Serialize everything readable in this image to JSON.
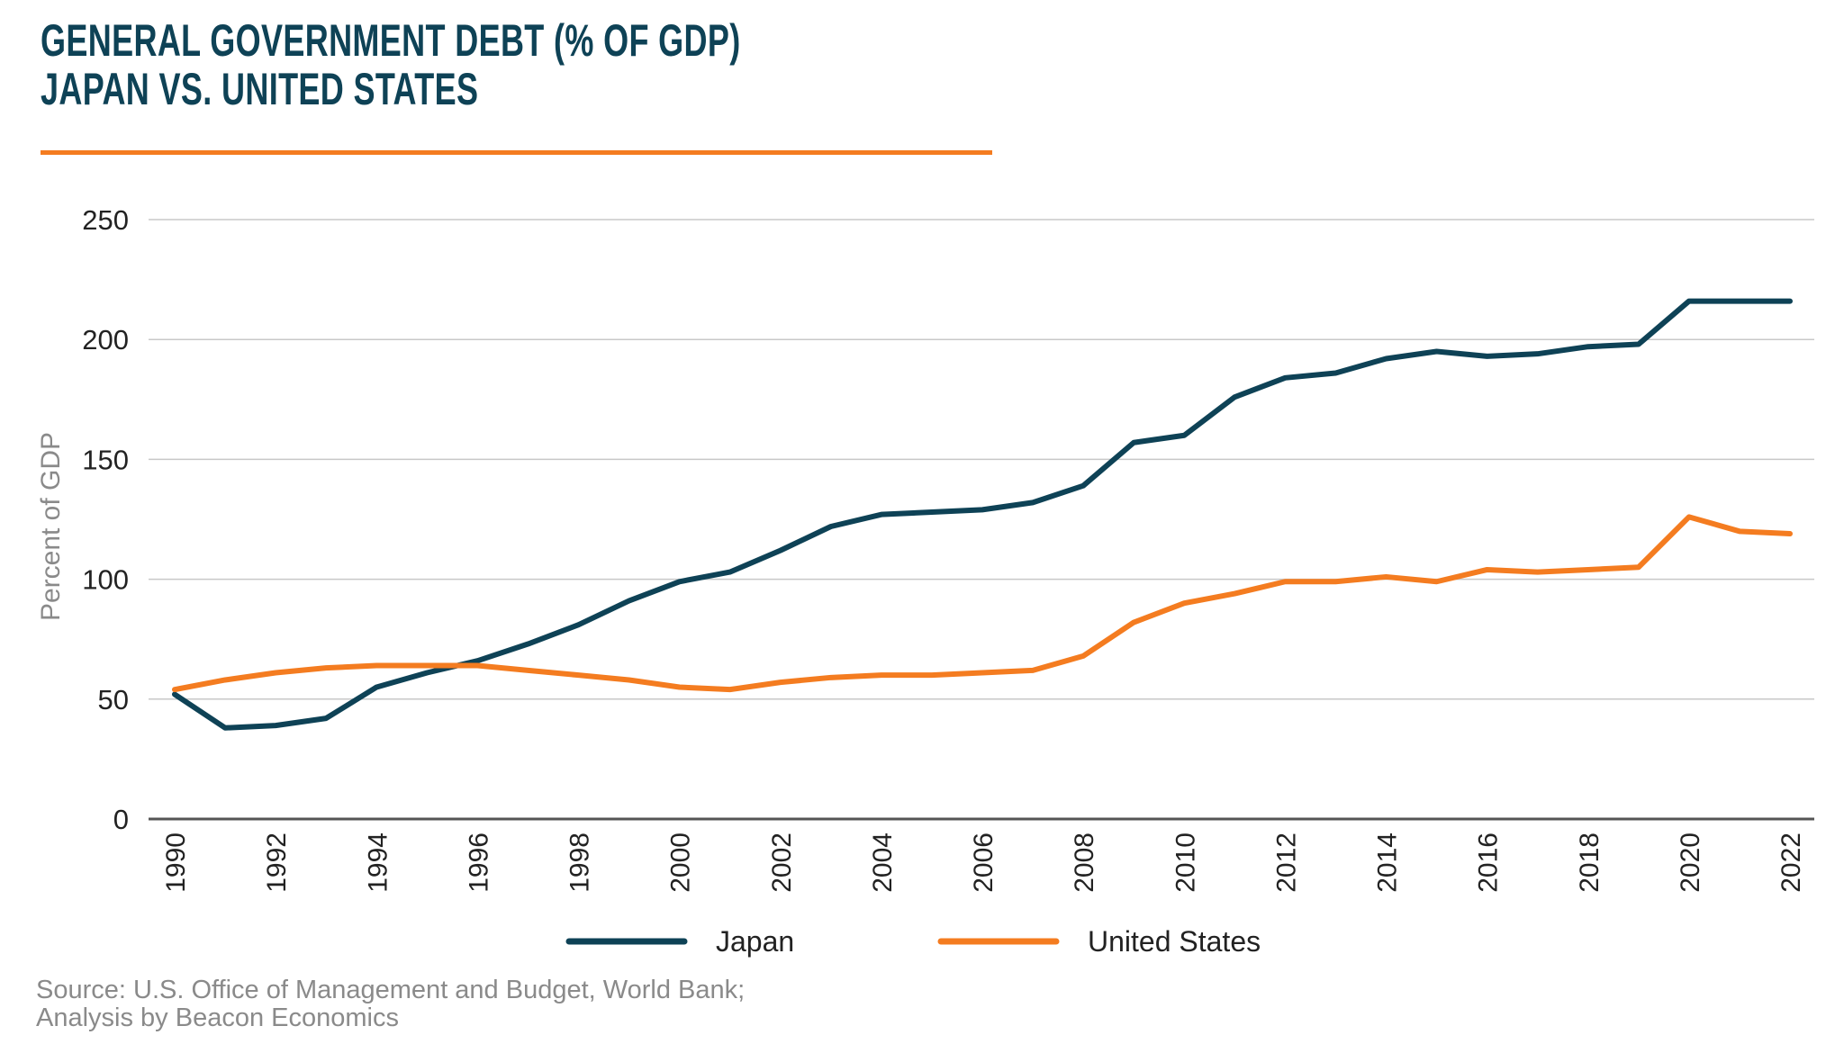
{
  "header": {
    "title_line1": "GENERAL GOVERNMENT DEBT (% OF GDP)",
    "title_line2": "JAPAN VS. UNITED STATES"
  },
  "chart_data": {
    "type": "line",
    "title": "General Government Debt (% of GDP) Japan vs. United States",
    "xlabel": "",
    "ylabel": "Percent of GDP",
    "ylim": [
      0,
      250
    ],
    "yticks": [
      0,
      50,
      100,
      150,
      200,
      250
    ],
    "x": [
      1990,
      1991,
      1992,
      1993,
      1994,
      1995,
      1996,
      1997,
      1998,
      1999,
      2000,
      2001,
      2002,
      2003,
      2004,
      2005,
      2006,
      2007,
      2008,
      2009,
      2010,
      2011,
      2012,
      2013,
      2014,
      2015,
      2016,
      2017,
      2018,
      2019,
      2020,
      2021,
      2022
    ],
    "xticks": [
      1990,
      1992,
      1994,
      1996,
      1998,
      2000,
      2002,
      2004,
      2006,
      2008,
      2010,
      2012,
      2014,
      2016,
      2018,
      2020,
      2022
    ],
    "grid": true,
    "legend": "bottom-center",
    "series": [
      {
        "name": "Japan",
        "color": "#0e4256",
        "values": [
          52,
          38,
          39,
          42,
          55,
          61,
          66,
          73,
          81,
          91,
          99,
          103,
          112,
          122,
          127,
          128,
          129,
          132,
          139,
          157,
          160,
          176,
          184,
          186,
          192,
          195,
          193,
          194,
          197,
          198,
          216,
          216,
          216
        ]
      },
      {
        "name": "United States",
        "color": "#f47c20",
        "values": [
          54,
          58,
          61,
          63,
          64,
          64,
          64,
          62,
          60,
          58,
          55,
          54,
          57,
          59,
          60,
          60,
          61,
          62,
          68,
          82,
          90,
          94,
          99,
          99,
          101,
          99,
          104,
          103,
          104,
          105,
          126,
          120,
          119
        ]
      }
    ]
  },
  "source": {
    "line1": "Source: U.S. Office of Management and Budget, World Bank;",
    "line2": "Analysis by Beacon Economics"
  }
}
